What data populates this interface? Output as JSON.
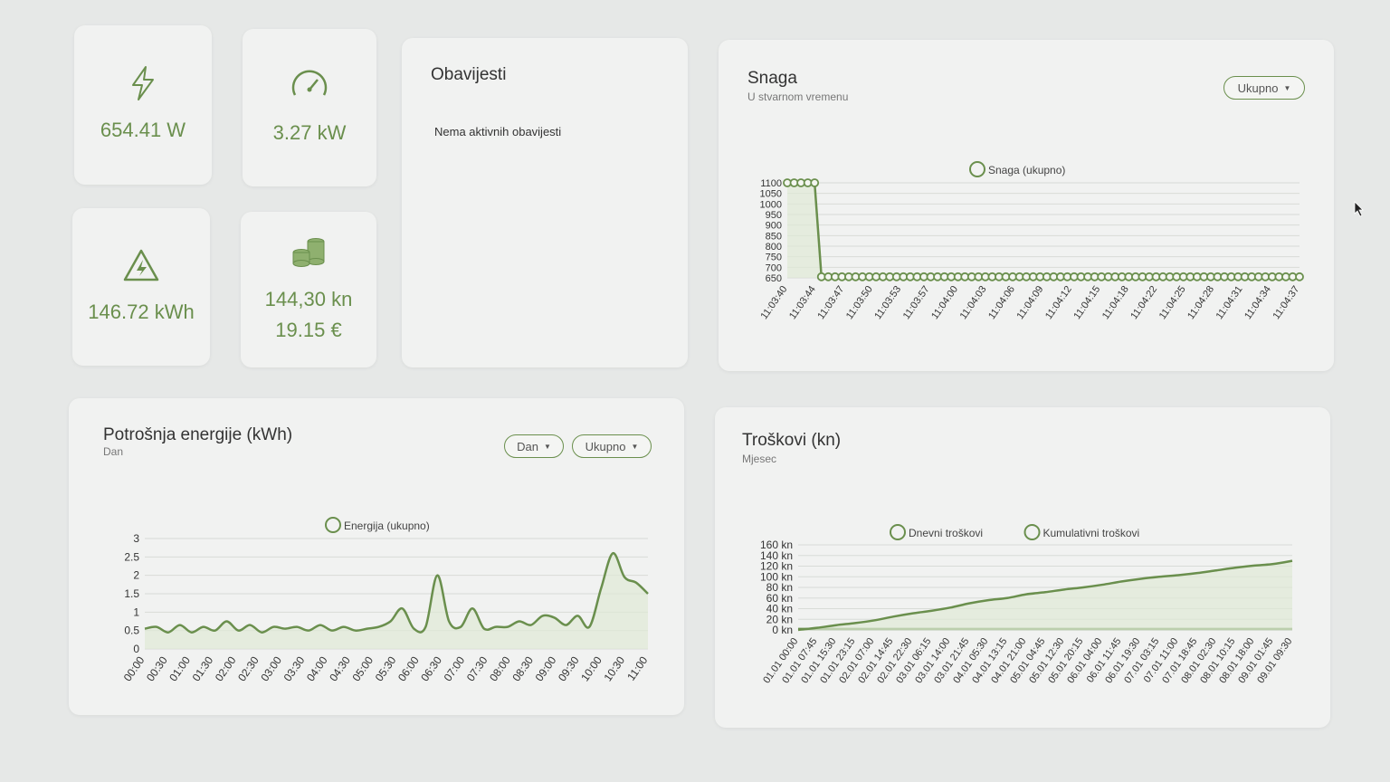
{
  "stats": {
    "power_w": "654.41 W",
    "power_kw": "3.27 kW",
    "energy": "146.72 kWh",
    "cost_kn": "144,30 kn",
    "cost_eur": "19.15 €"
  },
  "notifications": {
    "title": "Obavijesti",
    "empty_text": "Nema aktivnih obavijesti"
  },
  "power_card": {
    "title": "Snaga",
    "subtitle": "U stvarnom vremenu",
    "filter_label": "Ukupno"
  },
  "energy_card": {
    "title": "Potrošnja energije (kWh)",
    "subtitle": "Dan",
    "period_label": "Dan",
    "filter_label": "Ukupno"
  },
  "cost_card": {
    "title": "Troškovi (kn)",
    "subtitle": "Mjesec"
  },
  "colors": {
    "accent": "#6a8f4d",
    "fill": "#dfe9d6",
    "background": "#e6e8e7",
    "card": "#f1f2f1"
  },
  "icons": {
    "power_w": "lightning-icon",
    "power_kw": "speedometer-icon",
    "energy": "high-voltage-warning-icon",
    "cost": "coins-icon"
  },
  "chart_data": [
    {
      "type": "line",
      "legend": [
        "Snaga (ukupno)"
      ],
      "y_ticks": [
        "1100",
        "1050",
        "1000",
        "950",
        "900",
        "850",
        "800",
        "750",
        "700",
        "650"
      ],
      "ylim": [
        650,
        1100
      ],
      "x_labels": [
        "11:03:40",
        "11:03:44",
        "11:03:47",
        "11:03:50",
        "11:03:53",
        "11:03:57",
        "11:04:00",
        "11:04:03",
        "11:04:06",
        "11:04:09",
        "11:04:12",
        "11:04:15",
        "11:04:18",
        "11:04:22",
        "11:04:25",
        "11:04:28",
        "11:04:31",
        "11:04:34",
        "11:04:37"
      ],
      "series": [
        {
          "name": "Snaga (ukupno)",
          "values": [
            1100,
            1100,
            1100,
            1100,
            1100,
            655,
            655,
            655,
            655,
            655,
            655,
            655,
            655,
            655,
            655,
            655,
            655,
            655,
            655,
            655,
            655,
            655,
            655,
            655,
            655,
            655,
            655,
            655,
            655,
            655,
            655,
            655,
            655,
            655,
            655,
            655,
            655,
            655,
            655,
            655,
            655,
            655,
            655,
            655,
            655,
            655,
            655,
            655,
            655,
            655,
            655,
            655,
            655,
            655,
            655,
            655,
            655,
            655,
            655,
            655,
            655,
            655,
            655,
            655,
            655,
            655,
            655,
            655,
            655,
            655,
            655,
            655,
            655,
            655,
            655,
            655
          ]
        }
      ]
    },
    {
      "type": "area",
      "legend": [
        "Energija (ukupno)"
      ],
      "y_ticks": [
        "3",
        "2.5",
        "2",
        "1.5",
        "1",
        "0.5",
        "0"
      ],
      "ylim": [
        0,
        3
      ],
      "x_labels": [
        "00:00",
        "00:30",
        "01:00",
        "01:30",
        "02:00",
        "02:30",
        "03:00",
        "03:30",
        "04:00",
        "04:30",
        "05:00",
        "05:30",
        "06:00",
        "06:30",
        "07:00",
        "07:30",
        "08:00",
        "08:30",
        "09:00",
        "09:30",
        "10:00",
        "10:30",
        "11:00"
      ],
      "series": [
        {
          "name": "Energija (ukupno)",
          "values": [
            0.55,
            0.6,
            0.45,
            0.65,
            0.45,
            0.6,
            0.5,
            0.75,
            0.5,
            0.65,
            0.45,
            0.6,
            0.55,
            0.6,
            0.5,
            0.65,
            0.5,
            0.6,
            0.5,
            0.55,
            0.6,
            0.75,
            1.1,
            0.55,
            0.6,
            2.0,
            0.75,
            0.6,
            1.1,
            0.55,
            0.6,
            0.6,
            0.75,
            0.65,
            0.9,
            0.85,
            0.65,
            0.9,
            0.6,
            1.65,
            2.6,
            1.95,
            1.8,
            1.5
          ]
        }
      ]
    },
    {
      "type": "area",
      "legend": [
        "Dnevni troškovi",
        "Kumulativni troškovi"
      ],
      "y_ticks": [
        "160 kn",
        "140 kn",
        "120 kn",
        "100 kn",
        "80 kn",
        "60 kn",
        "40 kn",
        "20 kn",
        "0 kn"
      ],
      "ylim": [
        0,
        160
      ],
      "x_labels": [
        "01.01 00:00",
        "01.01 07:45",
        "01.01 15:30",
        "01.01 23:15",
        "02.01 07:00",
        "02.01 14:45",
        "02.01 22:30",
        "03.01 06:15",
        "03.01 14:00",
        "03.01 21:45",
        "04.01 05:30",
        "04.01 13:15",
        "04.01 21:00",
        "05.01 04:45",
        "05.01 12:30",
        "05.01 20:15",
        "06.01 04:00",
        "06.01 11:45",
        "06.01 19:30",
        "07.01 03:15",
        "07.01 11:00",
        "07.01 18:45",
        "08.01 02:30",
        "08.01 10:15",
        "08.01 18:00",
        "09.01 01:45",
        "09.01 09:30"
      ],
      "series": [
        {
          "name": "Dnevni troškovi",
          "values": [
            2,
            2,
            2,
            2,
            2,
            2,
            2,
            2,
            2,
            2,
            2,
            2,
            2,
            2,
            2,
            2,
            2,
            2,
            2,
            2,
            2,
            2,
            2,
            2,
            2,
            2,
            2
          ]
        },
        {
          "name": "Kumulativni troškovi",
          "values": [
            0,
            4,
            9,
            13,
            18,
            25,
            31,
            36,
            42,
            50,
            56,
            60,
            67,
            71,
            76,
            80,
            85,
            91,
            96,
            100,
            103,
            107,
            112,
            117,
            121,
            124,
            130
          ]
        }
      ]
    }
  ]
}
